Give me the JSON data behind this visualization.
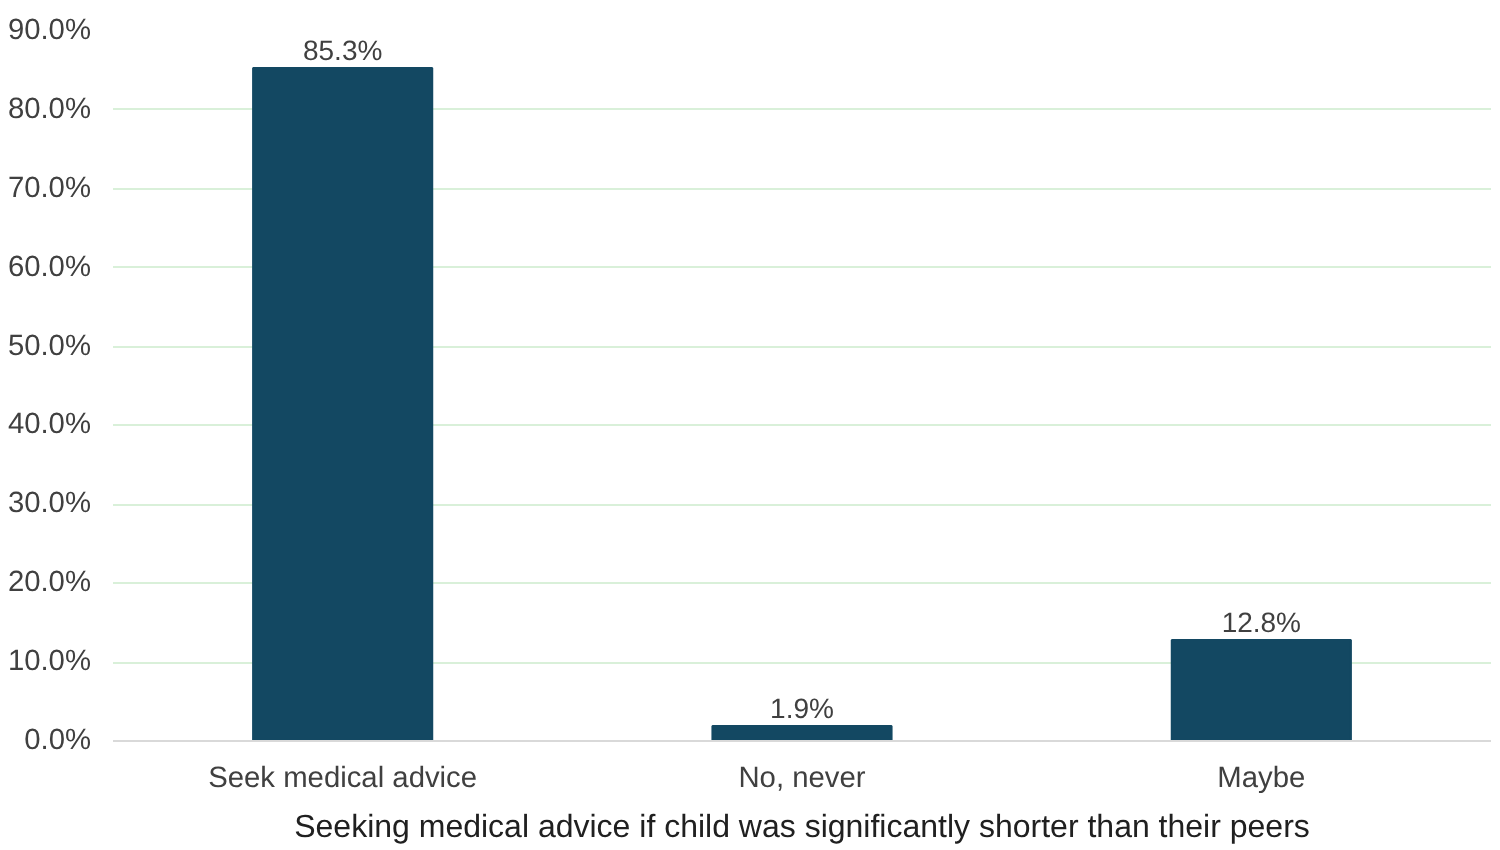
{
  "chart_data": {
    "type": "bar",
    "xlabel": "Seeking medical advice if child was significantly shorter than their peers",
    "categories": [
      "Seek medical advice",
      "No, never",
      "Maybe"
    ],
    "values": [
      85.3,
      1.9,
      12.8
    ],
    "value_labels": [
      "85.3%",
      "1.9%",
      "12.8%"
    ],
    "color": "#134862",
    "ylim": [
      0,
      90
    ],
    "yticks": [
      {
        "value": 0,
        "label": "0.0%"
      },
      {
        "value": 10,
        "label": "10.0%"
      },
      {
        "value": 20,
        "label": "20.0%"
      },
      {
        "value": 30,
        "label": "30.0%"
      },
      {
        "value": 40,
        "label": "40.0%"
      },
      {
        "value": 50,
        "label": "50.0%"
      },
      {
        "value": 60,
        "label": "60.0%"
      },
      {
        "value": 70,
        "label": "70.0%"
      },
      {
        "value": 80,
        "label": "80.0%"
      },
      {
        "value": 90,
        "label": "90.0%"
      }
    ],
    "grid": "y"
  }
}
